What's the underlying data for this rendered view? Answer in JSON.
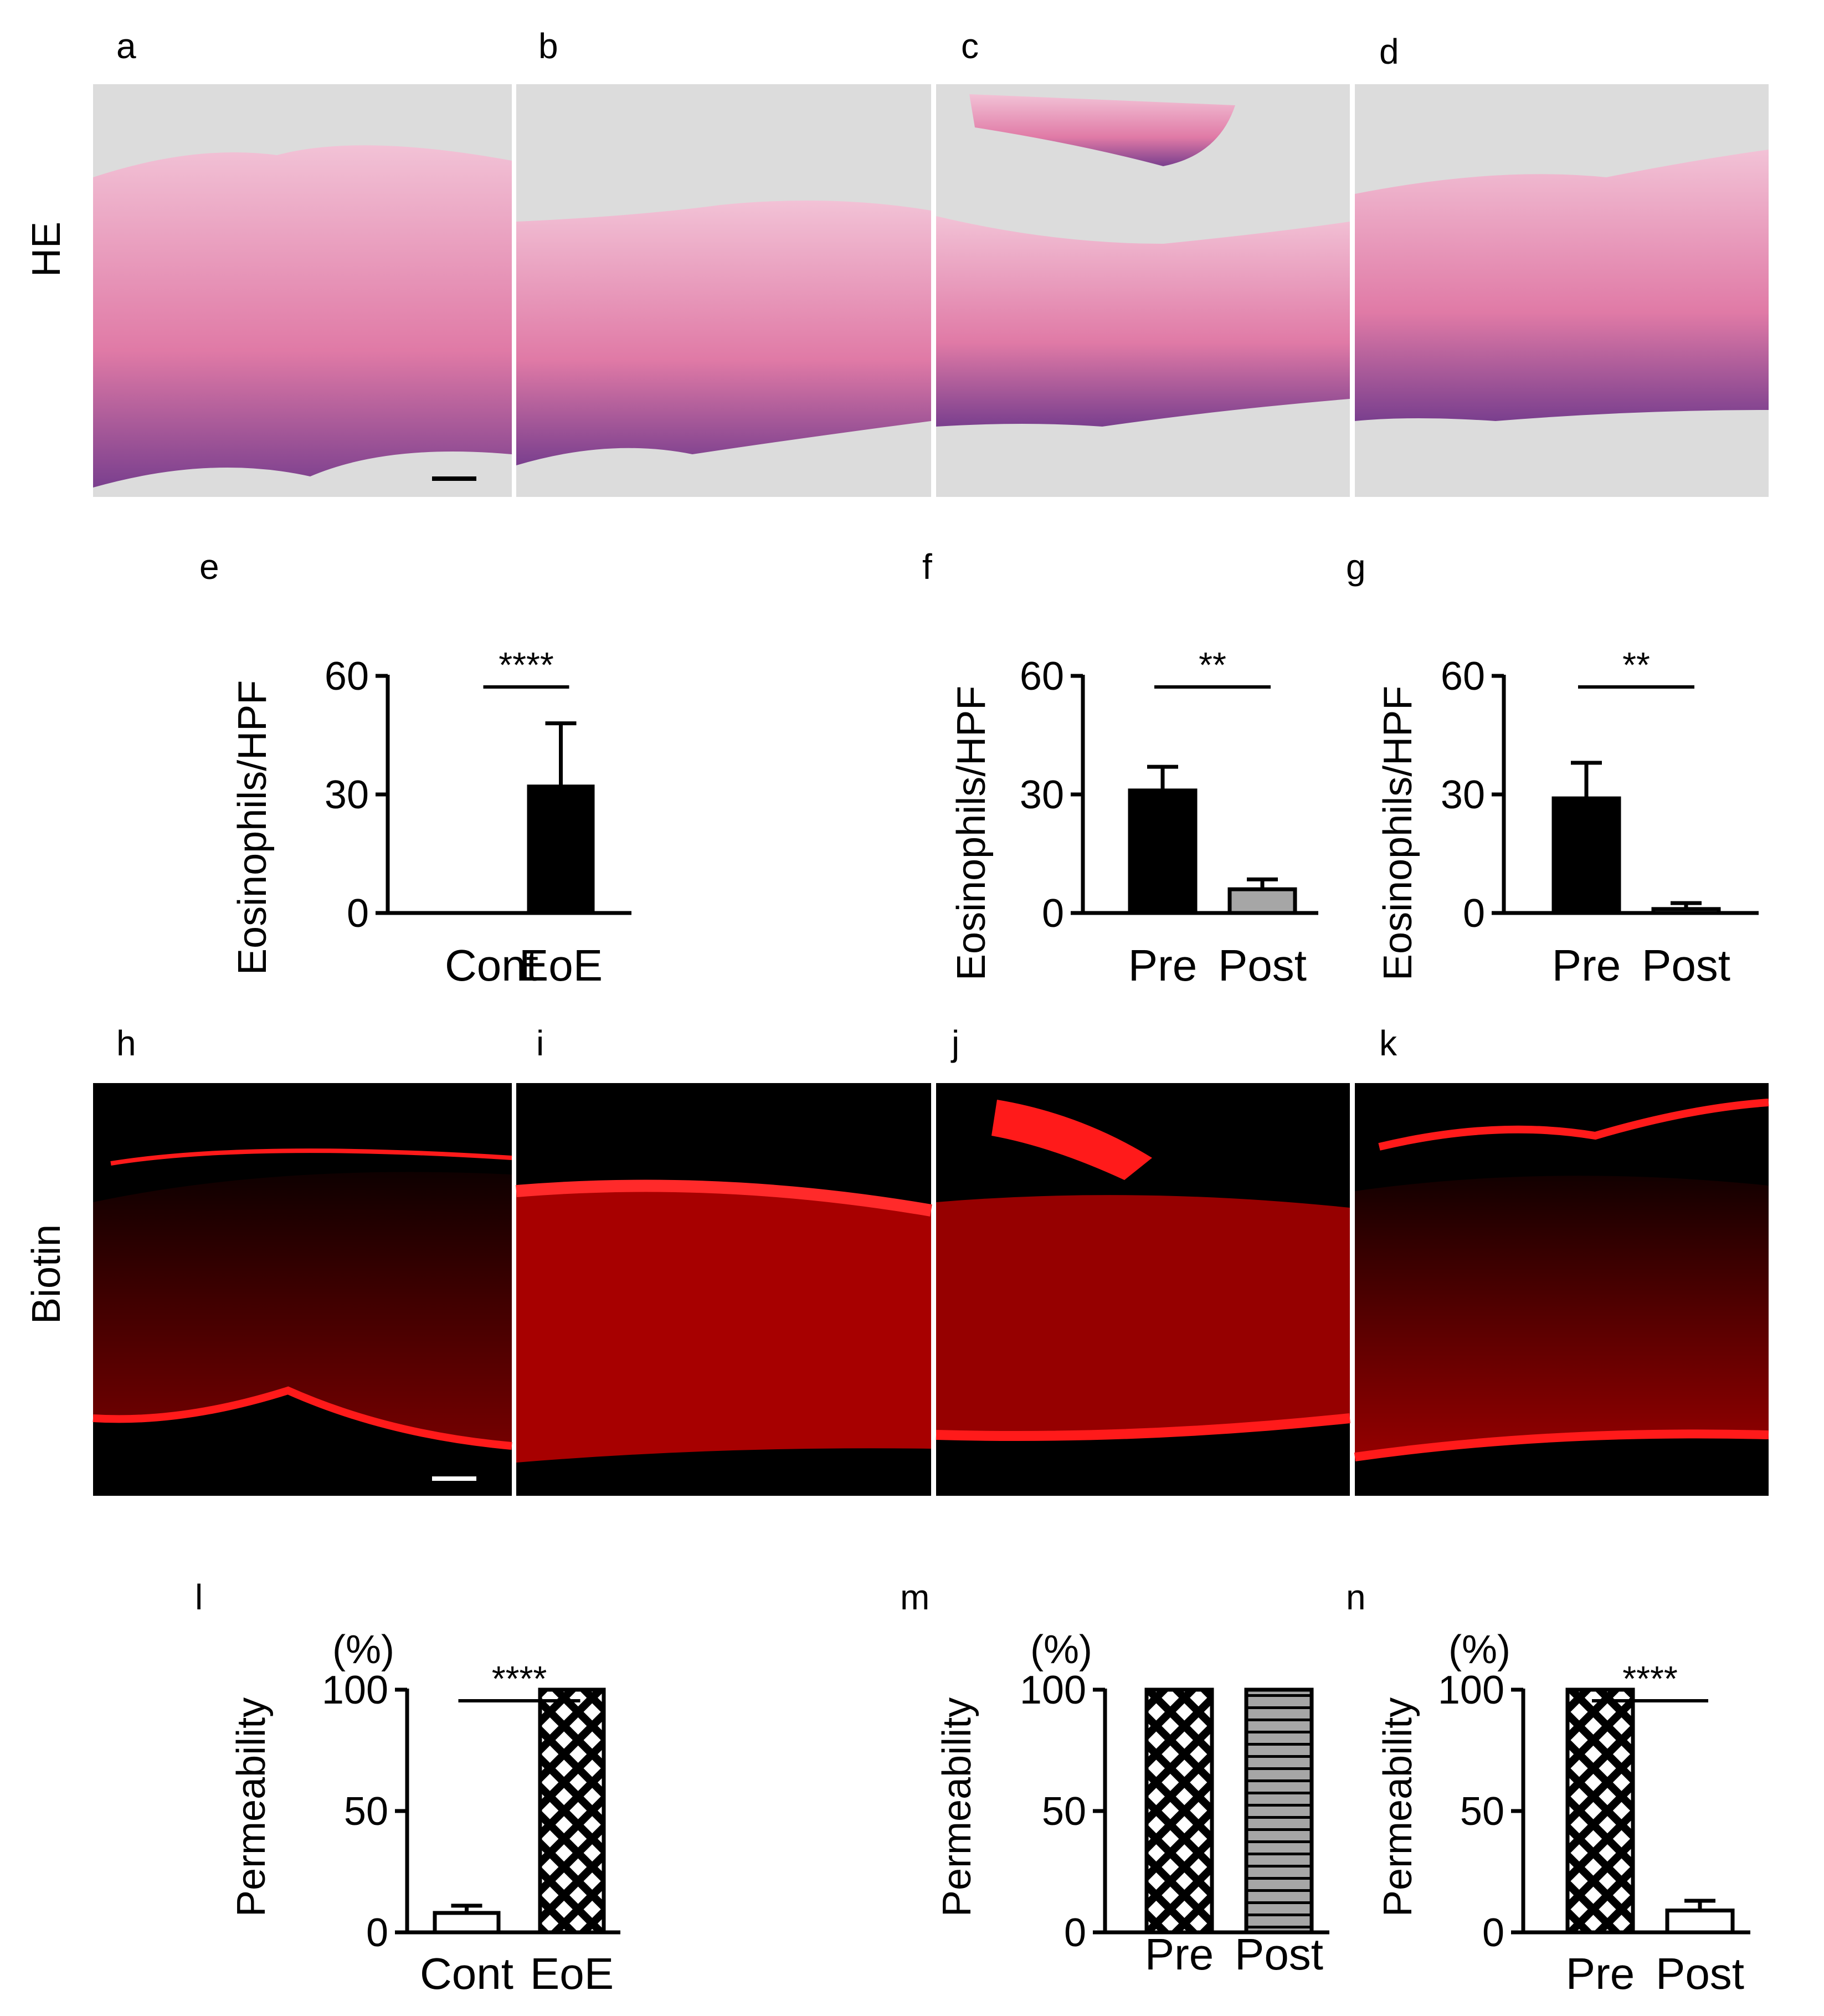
{
  "panel_labels": [
    "a",
    "b",
    "c",
    "d",
    "e",
    "f",
    "g",
    "h",
    "i",
    "j",
    "k",
    "l",
    "m",
    "n"
  ],
  "row_labels": {
    "he": "HE",
    "biotin": "Biotin"
  },
  "colors": {
    "he_background": "#dcdcdc",
    "he_tissue": "#e28ab0",
    "he_basal": "#7a3f8e",
    "biotin_background": "#000000",
    "biotin_signal": "#ff1a1a",
    "bar_black": "#000000",
    "bar_grey": "#a6a6a6",
    "bar_white": "#ffffff"
  },
  "chart_data": [
    {
      "panel": "e",
      "type": "bar",
      "categories": [
        "Cont",
        "EoE"
      ],
      "values": [
        0,
        32
      ],
      "errors": [
        0,
        16
      ],
      "fills": [
        "white",
        "black"
      ],
      "ylabel": "Eosinophils/HPF",
      "unit": "",
      "ylim": [
        0,
        60
      ],
      "yticks": [
        "0",
        "30",
        "60"
      ],
      "significance": "****"
    },
    {
      "panel": "f",
      "type": "bar",
      "categories": [
        "Pre",
        "Post"
      ],
      "values": [
        31,
        6
      ],
      "errors": [
        6,
        2.5
      ],
      "fills": [
        "black",
        "grey"
      ],
      "ylabel": "Eosinophils/HPF",
      "unit": "",
      "ylim": [
        0,
        60
      ],
      "yticks": [
        "0",
        "30",
        "60"
      ],
      "significance": "**"
    },
    {
      "panel": "g",
      "type": "bar",
      "categories": [
        "Pre",
        "Post"
      ],
      "values": [
        29,
        1
      ],
      "errors": [
        9,
        1.5
      ],
      "fills": [
        "black",
        "white"
      ],
      "ylabel": "Eosinophils/HPF",
      "unit": "",
      "ylim": [
        0,
        60
      ],
      "yticks": [
        "0",
        "30",
        "60"
      ],
      "significance": "**"
    },
    {
      "panel": "l",
      "type": "bar",
      "categories": [
        "Cont",
        "EoE"
      ],
      "values": [
        8,
        100
      ],
      "errors": [
        3,
        0
      ],
      "fills": [
        "white",
        "crosshatch"
      ],
      "ylabel": "Permeability",
      "unit": "(%)",
      "ylim": [
        0,
        100
      ],
      "yticks": [
        "0",
        "50",
        "100"
      ],
      "significance": "****"
    },
    {
      "panel": "m",
      "type": "bar",
      "categories": [
        "Pre",
        "Post"
      ],
      "values": [
        100,
        100
      ],
      "errors": [
        0,
        0
      ],
      "fills": [
        "crosshatch",
        "greystripe"
      ],
      "ylabel": "Permeability",
      "unit": "(%)",
      "ylim": [
        0,
        100
      ],
      "yticks": [
        "0",
        "50",
        "100"
      ],
      "significance": ""
    },
    {
      "panel": "n",
      "type": "bar",
      "categories": [
        "Pre",
        "Post"
      ],
      "values": [
        100,
        9
      ],
      "errors": [
        0,
        4
      ],
      "fills": [
        "crosshatch",
        "white"
      ],
      "ylabel": "Permeability",
      "unit": "(%)",
      "ylim": [
        0,
        100
      ],
      "yticks": [
        "0",
        "50",
        "100"
      ],
      "significance": "****"
    }
  ]
}
